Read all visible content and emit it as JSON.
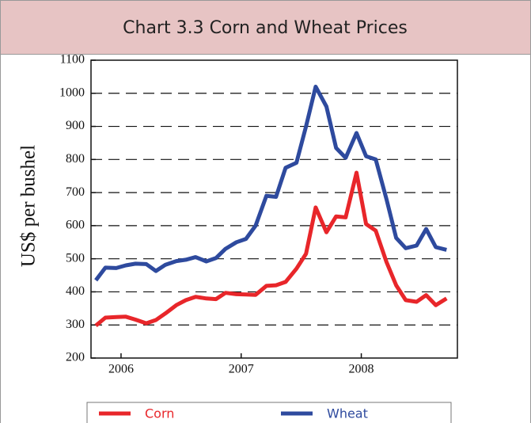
{
  "chart_data": {
    "type": "line",
    "title": "Chart 3.3 Corn and Wheat Prices",
    "y_label": "US$ per bushel",
    "x": [
      2005.79,
      2005.87,
      2005.96,
      2006.04,
      2006.12,
      2006.21,
      2006.29,
      2006.37,
      2006.46,
      2006.54,
      2006.62,
      2006.71,
      2006.79,
      2006.87,
      2006.96,
      2007.04,
      2007.12,
      2007.21,
      2007.29,
      2007.37,
      2007.46,
      2007.54,
      2007.62,
      2007.71,
      2007.79,
      2007.87,
      2007.96,
      2008.04,
      2008.12,
      2008.21,
      2008.29,
      2008.37,
      2008.46,
      2008.54,
      2008.62,
      2008.71
    ],
    "series": [
      {
        "name": "Corn",
        "color": "#e8262a",
        "values": [
          298,
          322,
          324,
          325,
          316,
          305,
          315,
          335,
          360,
          375,
          385,
          380,
          378,
          397,
          393,
          392,
          391,
          418,
          420,
          430,
          470,
          515,
          655,
          580,
          628,
          625,
          760,
          605,
          585,
          490,
          420,
          375,
          370,
          390,
          360,
          380
        ]
      },
      {
        "name": "Wheat",
        "color": "#2e4a9e",
        "values": [
          435,
          473,
          472,
          480,
          485,
          484,
          463,
          482,
          493,
          497,
          505,
          492,
          502,
          530,
          550,
          560,
          600,
          690,
          687,
          775,
          790,
          900,
          1020,
          960,
          835,
          805,
          880,
          810,
          800,
          680,
          563,
          532,
          540,
          590,
          535,
          527
        ]
      }
    ],
    "xlim": [
      2005.75,
      2008.8
    ],
    "xticks": [
      2006,
      2007,
      2008
    ],
    "ylim": [
      200,
      1100
    ],
    "yticks": [
      200,
      300,
      400,
      500,
      600,
      700,
      800,
      900,
      1000,
      1100
    ],
    "grid": true,
    "legend": "bottom"
  }
}
